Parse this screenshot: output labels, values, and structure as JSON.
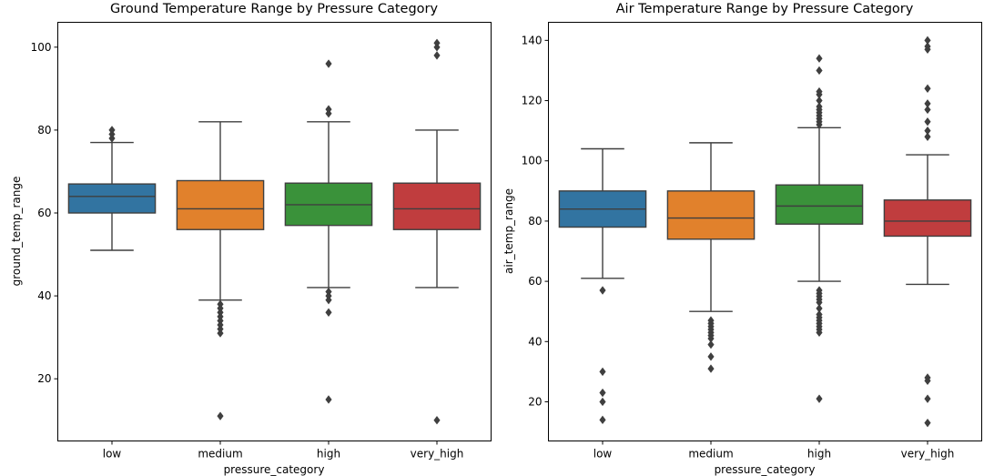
{
  "chart_data": [
    {
      "type": "box",
      "title": "Ground Temperature Range by Pressure Category",
      "xlabel": "pressure_category",
      "ylabel": "ground_temp_range",
      "ylim": [
        5,
        106
      ],
      "yticks": [
        20,
        40,
        60,
        80,
        100
      ],
      "grid": false,
      "categories": [
        "low",
        "medium",
        "high",
        "very_high"
      ],
      "boxes": [
        {
          "category": "low",
          "whisker_low": 51,
          "q1": 60,
          "median": 64,
          "q3": 67,
          "whisker_high": 77,
          "outliers": [
            78,
            79,
            80
          ]
        },
        {
          "category": "medium",
          "whisker_low": 39,
          "q1": 56,
          "median": 61,
          "q3": 67.8,
          "whisker_high": 82,
          "outliers": [
            38,
            37,
            36,
            35,
            34,
            33,
            32,
            31,
            11
          ]
        },
        {
          "category": "high",
          "whisker_low": 42,
          "q1": 57,
          "median": 62,
          "q3": 67.2,
          "whisker_high": 82,
          "outliers": [
            84,
            85,
            96,
            41,
            40,
            39,
            36,
            15
          ]
        },
        {
          "category": "very_high",
          "whisker_low": 42,
          "q1": 56,
          "median": 61,
          "q3": 67.2,
          "whisker_high": 80,
          "outliers": [
            98,
            100,
            101,
            10
          ]
        }
      ]
    },
    {
      "type": "box",
      "title": "Air Temperature Range by Pressure Category",
      "xlabel": "pressure_category",
      "ylabel": "air_temp_range",
      "ylim": [
        7,
        146
      ],
      "yticks": [
        20,
        40,
        60,
        80,
        100,
        120,
        140
      ],
      "grid": false,
      "categories": [
        "low",
        "medium",
        "high",
        "very_high"
      ],
      "boxes": [
        {
          "category": "low",
          "whisker_low": 61,
          "q1": 78,
          "median": 84,
          "q3": 90,
          "whisker_high": 104,
          "outliers": [
            57,
            30,
            23,
            20,
            14
          ]
        },
        {
          "category": "medium",
          "whisker_low": 50,
          "q1": 74,
          "median": 81,
          "q3": 90,
          "whisker_high": 106,
          "outliers": [
            47,
            46,
            45,
            44,
            43,
            42,
            41,
            39,
            35,
            31
          ]
        },
        {
          "category": "high",
          "whisker_low": 60,
          "q1": 79,
          "median": 85,
          "q3": 92,
          "whisker_high": 111,
          "outliers": [
            112,
            113,
            114,
            115,
            116,
            117,
            118,
            120,
            122,
            123,
            130,
            134,
            57,
            56,
            55,
            54,
            53,
            51,
            49,
            48,
            47,
            46,
            45,
            44,
            43,
            21
          ]
        },
        {
          "category": "very_high",
          "whisker_low": 59,
          "q1": 75,
          "median": 80,
          "q3": 87,
          "whisker_high": 102,
          "outliers": [
            108,
            110,
            113,
            117,
            119,
            124,
            137,
            138,
            140,
            28,
            27,
            21,
            13
          ]
        }
      ]
    }
  ],
  "palette": [
    "#3274a1",
    "#e1812c",
    "#3a923a",
    "#c03d3e"
  ],
  "line_color": "#3f3f3f"
}
